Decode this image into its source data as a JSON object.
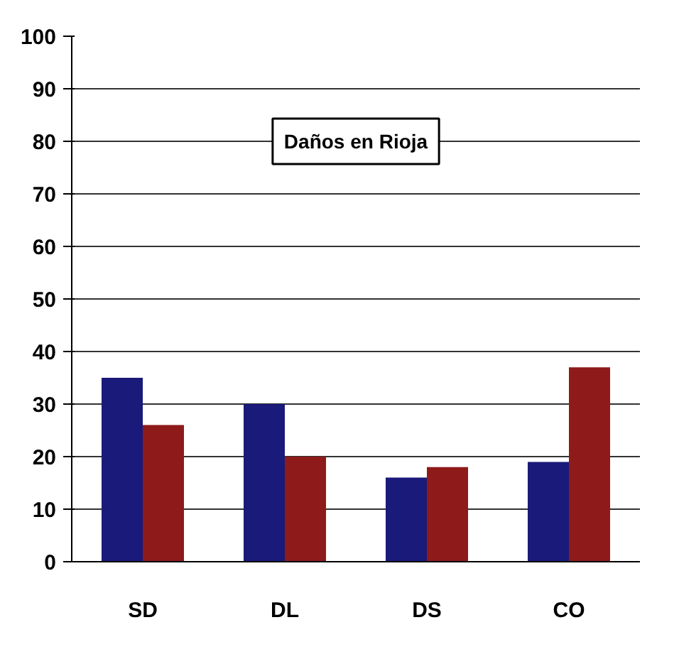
{
  "chart_data": {
    "type": "bar",
    "title": "Daños en Rioja",
    "categories": [
      "SD",
      "DL",
      "DS",
      "CO"
    ],
    "series": [
      {
        "color": "#1a1a7a",
        "values": [
          35,
          30,
          16,
          19
        ]
      },
      {
        "color": "#8e1a1a",
        "values": [
          26,
          20,
          18,
          37
        ]
      }
    ],
    "ylim": [
      0,
      100
    ],
    "yticks": [
      0,
      10,
      20,
      30,
      40,
      50,
      60,
      70,
      80,
      90,
      100
    ],
    "grid": "y"
  }
}
